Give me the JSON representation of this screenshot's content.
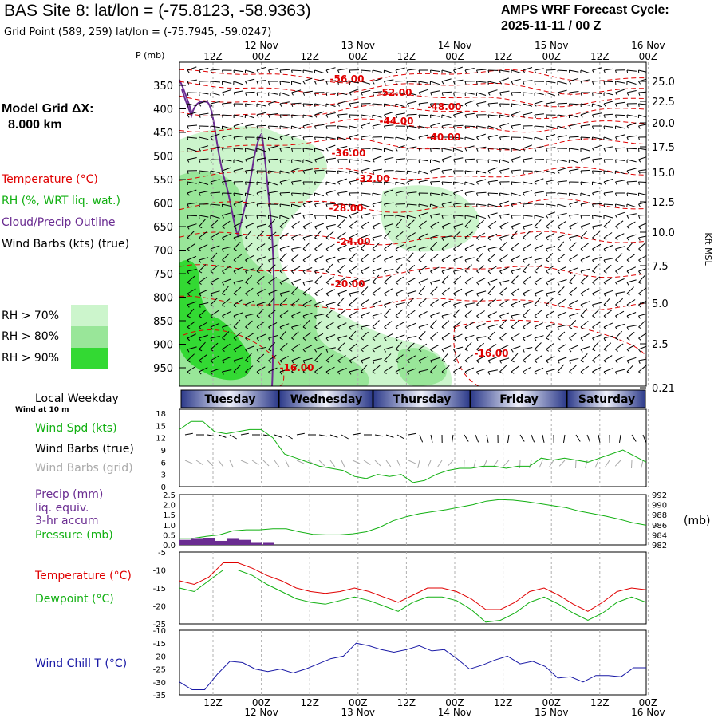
{
  "header": {
    "title": "BAS Site 8:  lat/lon = (-75.8123, -58.9363)",
    "subtitle": "Grid Point (589, 259) lat/lon = (-75.7945, -59.0247)",
    "cycle_label": "AMPS WRF Forecast Cycle:",
    "cycle_value": "2025-11-11 / 00  Z"
  },
  "left_panel": {
    "model_grid_label": "Model Grid ΔX:",
    "model_grid_value": "8.000 km",
    "legend_temperature": "Temperature (°C)",
    "legend_rh": "RH (%, WRT liq. wat.)",
    "legend_cloud": "Cloud/Precip Outline",
    "legend_wind": "Wind Barbs (kts) (true)",
    "rh_70": "RH > 70%",
    "rh_80": "RH > 80%",
    "rh_90": "RH > 90%",
    "local_weekday": "Local Weekday",
    "wind_at_10m": "Wind at 10 m",
    "wind_spd": "Wind Spd (kts)",
    "wind_barbs_true": "Wind Barbs (true)",
    "wind_barbs_grid": "Wind Barbs (grid)",
    "precip": "Precip (mm)",
    "liq_equiv": "liq. equiv.",
    "accum": "3-hr accum",
    "pressure": "Pressure (mb)",
    "temperature": "Temperature (°C)",
    "dewpoint": "Dewpoint (°C)",
    "wind_chill": "Wind Chill T (°C)"
  },
  "colors": {
    "temperature": "#e00000",
    "dewpoint": "#12b012",
    "wind_speed": "#12b012",
    "pressure": "#12b012",
    "precip": "#6a2c91",
    "cloud_outline": "#6a2c91",
    "wind_chill": "#1a1aa6",
    "rh70": "#ccf5cc",
    "rh80": "#99e699",
    "rh90": "#33d933",
    "wind_barbs_grid": "#aaaaaa"
  },
  "axis_labels": {
    "p_axis_title": "P (mb)",
    "right_axis_title": "Kft MSL",
    "pressure_right_unit": "(mb)"
  },
  "chart_data": [
    {
      "type": "heatmap",
      "name": "time-height cross section",
      "x_top_ticks": [
        "12Z",
        "00Z",
        "12Z",
        "00Z",
        "12Z",
        "00Z",
        "12Z",
        "00Z",
        "12Z",
        "00Z"
      ],
      "x_top_dates": [
        "12 Nov",
        "13 Nov",
        "14 Nov",
        "15 Nov",
        "16 Nov"
      ],
      "x_bottom_ticks": [
        "12Z",
        "00Z",
        "12Z",
        "00Z",
        "12Z",
        "00Z",
        "12Z",
        "00Z",
        "12Z",
        "00Z"
      ],
      "x_bottom_dates": [
        "12 Nov",
        "13 Nov",
        "14 Nov",
        "15 Nov",
        "16 Nov"
      ],
      "y_pressure_ticks": [
        "350",
        "400",
        "450",
        "500",
        "550",
        "600",
        "650",
        "700",
        "750",
        "800",
        "850",
        "900",
        "950"
      ],
      "y_kft_ticks": [
        "25.0",
        "22.5",
        "20.0",
        "17.5",
        "15.0",
        "12.5",
        "10.0",
        "7.5",
        "5.0",
        "2.5",
        "0.21"
      ],
      "temperature_contour_labels": [
        "-56.00",
        "-52.00",
        "-48.00",
        "-44.00",
        "-40.00",
        "-36.00",
        "-32.00",
        "-28.00",
        "-24.00",
        "-20.00",
        "-16.00",
        "-16.00"
      ],
      "weekdays": [
        "Tuesday",
        "Wednesday",
        "Thursday",
        "Friday",
        "Saturday"
      ]
    },
    {
      "type": "line",
      "name": "wind speed 10 m",
      "y_ticks": [
        "18",
        "15",
        "12",
        "9",
        "6",
        "3",
        "0"
      ],
      "x_hours": [
        0,
        3,
        6,
        9,
        12,
        15,
        18,
        21,
        24,
        27,
        30,
        33,
        36,
        39,
        42,
        45,
        48,
        51,
        54,
        57,
        60,
        63,
        66,
        69,
        72,
        75,
        78,
        81,
        84,
        87,
        90,
        93,
        96,
        99,
        102,
        105,
        108,
        111,
        114,
        117,
        120
      ],
      "series": [
        {
          "values": [
            14,
            16,
            16,
            13.5,
            13,
            13.5,
            14,
            14,
            12,
            8,
            7,
            6,
            5,
            4.5,
            4,
            2.5,
            2,
            3,
            2.5,
            3,
            1,
            1.5,
            3,
            4,
            4.5,
            4.5,
            5,
            5,
            4.5,
            5,
            5,
            7,
            6.5,
            7,
            6.5,
            6,
            7,
            8,
            9,
            7.5,
            6
          ]
        }
      ],
      "ylim": [
        0,
        18
      ]
    },
    {
      "type": "line",
      "name": "precip and pressure",
      "y_left_ticks": [
        "2.5",
        "2.0",
        "1.5",
        "1.0",
        "0.5",
        "0.0"
      ],
      "y_right_ticks": [
        "992",
        "990",
        "988",
        "986",
        "984",
        "982"
      ],
      "precip_bars": [
        0.25,
        0.3,
        0.35,
        0.2,
        0.3,
        0.25,
        0.1,
        0.1
      ],
      "series": [
        {
          "values": [
            983.3,
            983.3,
            983.7,
            984,
            984.8,
            985,
            985,
            985.2,
            985.2,
            984.6,
            984.1,
            984,
            984,
            984.2,
            984.6,
            985.5,
            986.8,
            987.6,
            988.2,
            988.6,
            989,
            989.5,
            990,
            990.7,
            991,
            990.9,
            990.6,
            990.2,
            989.8,
            989.4,
            988.7,
            988.2,
            987.7,
            987.1,
            986.4,
            985.9
          ]
        }
      ],
      "ylim_precip": [
        0,
        2.5
      ],
      "ylim_pressure": [
        982,
        992
      ]
    },
    {
      "type": "line",
      "name": "temperature and dewpoint",
      "y_ticks": [
        "-5",
        "-10",
        "-15",
        "-20",
        "-25"
      ],
      "series": [
        {
          "name": "Temperature (°C)",
          "values": [
            -13,
            -14,
            -12,
            -8,
            -8,
            -9.5,
            -11.5,
            -13,
            -15,
            -16,
            -16.5,
            -16,
            -15,
            -16,
            -17.5,
            -19,
            -17,
            -15,
            -15,
            -16,
            -18,
            -21,
            -21,
            -19,
            -16,
            -15,
            -17,
            -19.5,
            -21.5,
            -19,
            -16,
            -15,
            -15.5
          ]
        },
        {
          "name": "Dewpoint (°C)",
          "values": [
            -15,
            -16,
            -13,
            -10,
            -10,
            -11.5,
            -14,
            -16,
            -18,
            -19,
            -19.5,
            -18.5,
            -17.5,
            -18.5,
            -20,
            -21.5,
            -19,
            -17.5,
            -17.5,
            -18.5,
            -21,
            -24.5,
            -24,
            -22,
            -19,
            -17.5,
            -19.5,
            -22,
            -24,
            -22,
            -19,
            -17.5,
            -19
          ]
        }
      ],
      "ylim": [
        -25,
        -5
      ]
    },
    {
      "type": "line",
      "name": "wind chill",
      "y_ticks": [
        "-10",
        "-15",
        "-20",
        "-25",
        "-30",
        "-35"
      ],
      "series": [
        {
          "name": "Wind Chill T (°C)",
          "values": [
            -30,
            -33,
            -33,
            -27,
            -22,
            -22.5,
            -25,
            -26,
            -25,
            -26.5,
            -25,
            -23,
            -21,
            -20,
            -15,
            -16,
            -17.5,
            -18.5,
            -17.5,
            -16,
            -18,
            -17.5,
            -21,
            -25,
            -23.5,
            -21.5,
            -20,
            -23,
            -22,
            -24,
            -28.5,
            -28,
            -30,
            -27.5,
            -27.5,
            -28,
            -24.5,
            -24.5
          ]
        }
      ],
      "ylim": [
        -35,
        -10
      ]
    }
  ]
}
